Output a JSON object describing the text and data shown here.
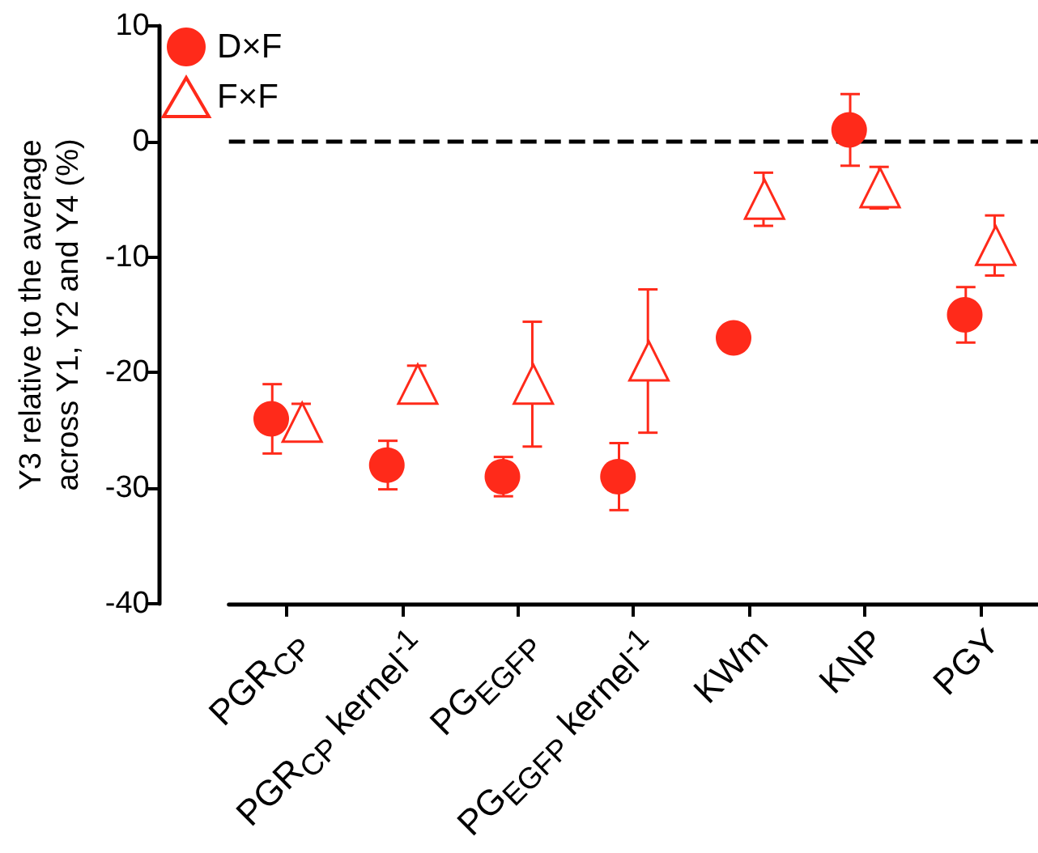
{
  "chart_data": {
    "type": "scatter",
    "ylabel": "Y3 relative to the average\nacross Y1, Y2 and Y4 (%)",
    "categories": [
      "PGR$_{CP}$",
      "PGR$_{CP}$ kernel$^{-1}$",
      "PG$_{EGFP}$",
      "PG$_{EGFP}$ kernel$^{-1}$",
      "KWm",
      "KNP",
      "PGY"
    ],
    "series": [
      {
        "name": "D×F",
        "color": "#ff2a1a",
        "marker": "circle",
        "values": [
          -24,
          -28,
          -29,
          -29,
          -17,
          1,
          -15
        ],
        "errors": [
          3,
          2.1,
          1.7,
          2.9,
          null,
          3.1,
          2.4
        ]
      },
      {
        "name": "F×F",
        "color": "#ff2a1a",
        "marker": "triangle",
        "values": [
          -24.3,
          -21,
          -21,
          -19,
          -5,
          -4,
          -9
        ],
        "errors": [
          1.6,
          1.6,
          5.4,
          6.2,
          2.3,
          1.8,
          2.6
        ]
      }
    ],
    "ylim": [
      -40,
      10
    ],
    "yticks": [
      -40,
      -30,
      -20,
      -10,
      0,
      10
    ],
    "ref_lines": [
      {
        "axis": "y",
        "value": 0,
        "color": "#000000",
        "line_style": "dashed"
      }
    ],
    "grid": false,
    "legend": "top left"
  }
}
